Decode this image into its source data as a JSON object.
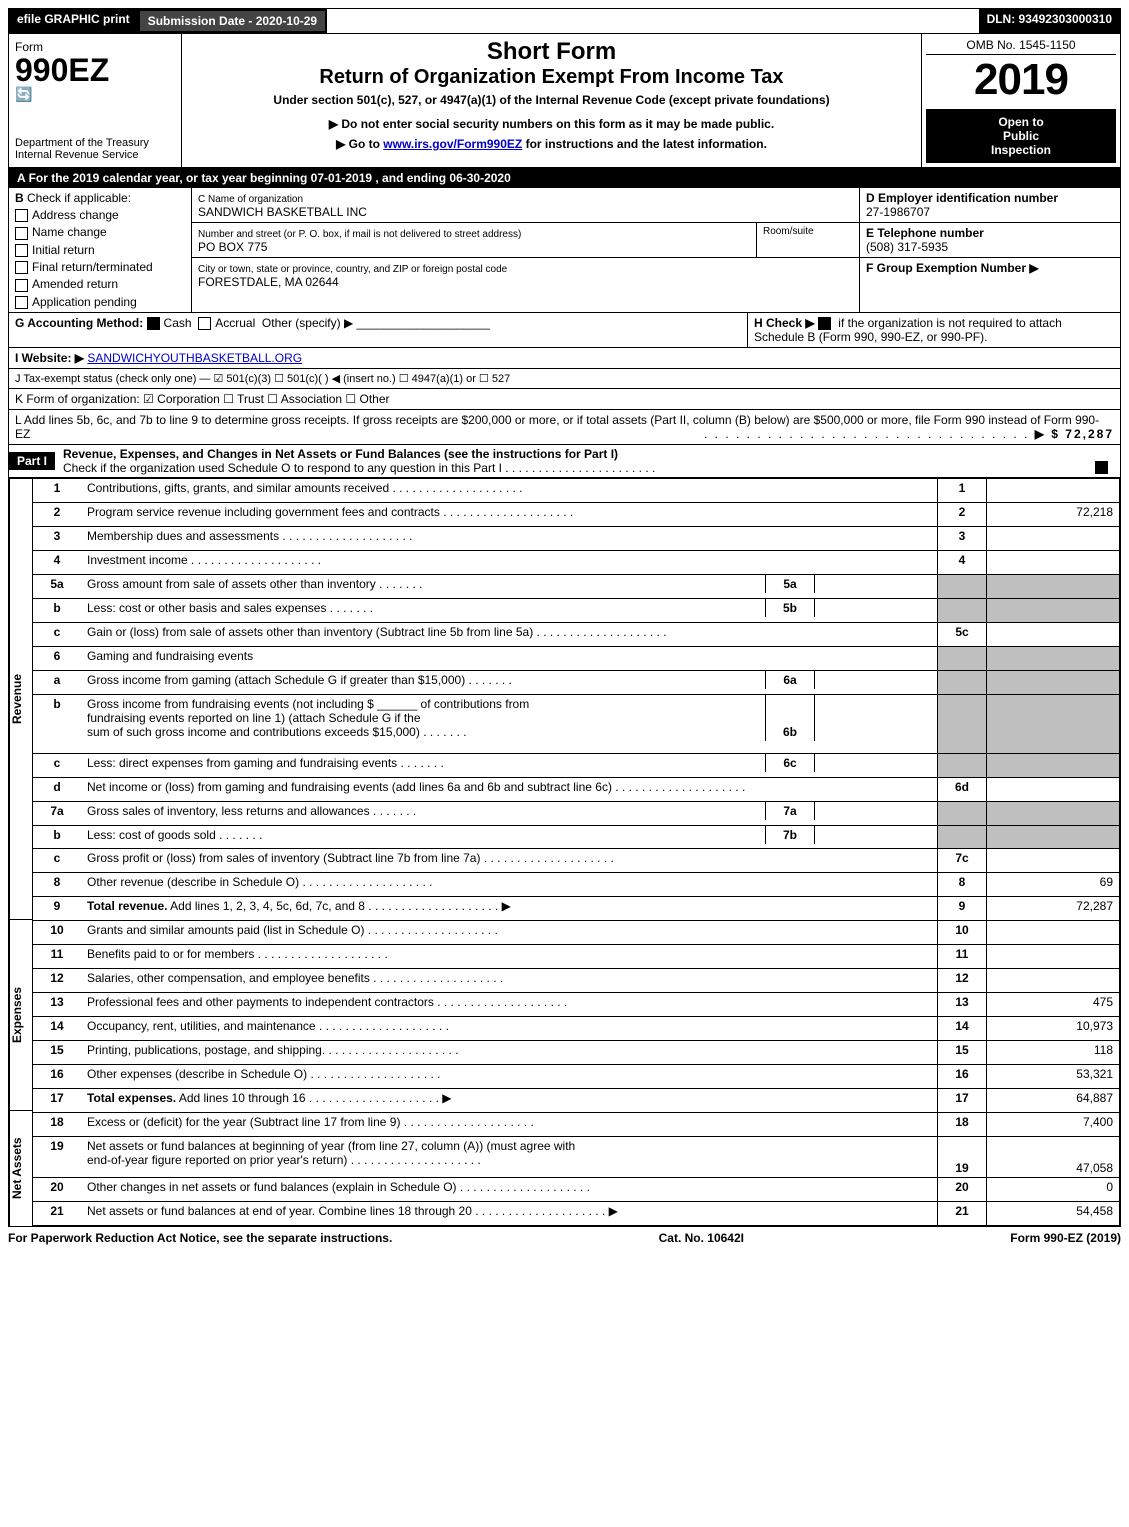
{
  "topbar": {
    "efile": "efile GRAPHIC print",
    "submission_label": "Submission Date - 2020-10-29",
    "dln_label": "DLN: 93492303000310"
  },
  "header": {
    "form_word": "Form",
    "form_num": "990EZ",
    "dept": "Department of the Treasury",
    "irs": "Internal Revenue Service",
    "short_form": "Short Form",
    "title": "Return of Organization Exempt From Income Tax",
    "subtitle": "Under section 501(c), 527, or 4947(a)(1) of the Internal Revenue Code (except private foundations)",
    "note1": "▶ Do not enter social security numbers on this form as it may be made public.",
    "note2": "▶ Go to ",
    "note2_link": "www.irs.gov/Form990EZ",
    "note2_tail": " for instructions and the latest information.",
    "omb": "OMB No. 1545-1150",
    "year": "2019",
    "open1": "Open to",
    "open2": "Public",
    "open3": "Inspection"
  },
  "A": {
    "text": "For the 2019 calendar year, or tax year beginning 07-01-2019 , and ending 06-30-2020"
  },
  "B": {
    "label": "Check if applicable:",
    "opts": [
      "Address change",
      "Name change",
      "Initial return",
      "Final return/terminated",
      "Amended return",
      "Application pending"
    ]
  },
  "C": {
    "name_label": "C Name of organization",
    "name": "SANDWICH BASKETBALL INC",
    "street_label": "Number and street (or P. O. box, if mail is not delivered to street address)",
    "room_label": "Room/suite",
    "street": "PO BOX 775",
    "city_label": "City or town, state or province, country, and ZIP or foreign postal code",
    "city": "FORESTDALE, MA  02644"
  },
  "D": {
    "label": "D Employer identification number",
    "value": "27-1986707"
  },
  "E": {
    "label": "E Telephone number",
    "value": "(508) 317-5935"
  },
  "F": {
    "label": "F Group Exemption Number ▶",
    "value": ""
  },
  "G": {
    "label": "G Accounting Method:",
    "cash": "Cash",
    "accrual": "Accrual",
    "other": "Other (specify) ▶"
  },
  "H": {
    "label": "H  Check ▶",
    "tail": "if the organization is not required to attach Schedule B (Form 990, 990-EZ, or 990-PF)."
  },
  "I": {
    "prefix": "I Website: ▶",
    "value": "SANDWICHYOUTHBASKETBALL.ORG"
  },
  "J": {
    "text": "J Tax-exempt status (check only one) —  ☑ 501(c)(3)  ☐ 501(c)(  ) ◀ (insert no.)  ☐ 4947(a)(1) or  ☐ 527"
  },
  "K": {
    "text": "K Form of organization:   ☑ Corporation   ☐ Trust   ☐ Association   ☐ Other"
  },
  "L": {
    "text": "L Add lines 5b, 6c, and 7b to line 9 to determine gross receipts. If gross receipts are $200,000 or more, or if total assets (Part II, column (B) below) are $500,000 or more, file Form 990 instead of Form 990-EZ",
    "amount": "▶ $ 72,287"
  },
  "part1": {
    "label": "Part I",
    "title": "Revenue, Expenses, and Changes in Net Assets or Fund Balances (see the instructions for Part I)",
    "check_note": "Check if the organization used Schedule O to respond to any question in this Part I",
    "check_dots": ". . . . . . . . . . . . . . . . . . . . . . ."
  },
  "sections": {
    "revenue": "Revenue",
    "expenses": "Expenses",
    "netassets": "Net Assets"
  },
  "lines": {
    "l1": {
      "n": "1",
      "t": "Contributions, gifts, grants, and similar amounts received",
      "col": "1",
      "amt": ""
    },
    "l2": {
      "n": "2",
      "t": "Program service revenue including government fees and contracts",
      "col": "2",
      "amt": "72,218"
    },
    "l3": {
      "n": "3",
      "t": "Membership dues and assessments",
      "col": "3",
      "amt": ""
    },
    "l4": {
      "n": "4",
      "t": "Investment income",
      "col": "4",
      "amt": ""
    },
    "l5a": {
      "n": "5a",
      "t": "Gross amount from sale of assets other than inventory",
      "sub": "5a"
    },
    "l5b": {
      "n": "b",
      "t": "Less: cost or other basis and sales expenses",
      "sub": "5b"
    },
    "l5c": {
      "n": "c",
      "t": "Gain or (loss) from sale of assets other than inventory (Subtract line 5b from line 5a)",
      "col": "5c",
      "amt": ""
    },
    "l6": {
      "n": "6",
      "t": "Gaming and fundraising events"
    },
    "l6a": {
      "n": "a",
      "t": "Gross income from gaming (attach Schedule G if greater than $15,000)",
      "sub": "6a"
    },
    "l6b": {
      "n": "b",
      "t": "Gross income from fundraising events (not including $",
      "mid": "of contributions from",
      "t2": "fundraising events reported on line 1) (attach Schedule G if the",
      "t3": "sum of such gross income and contributions exceeds $15,000)",
      "sub": "6b"
    },
    "l6c": {
      "n": "c",
      "t": "Less: direct expenses from gaming and fundraising events",
      "sub": "6c"
    },
    "l6d": {
      "n": "d",
      "t": "Net income or (loss) from gaming and fundraising events (add lines 6a and 6b and subtract line 6c)",
      "col": "6d",
      "amt": ""
    },
    "l7a": {
      "n": "7a",
      "t": "Gross sales of inventory, less returns and allowances",
      "sub": "7a"
    },
    "l7b": {
      "n": "b",
      "t": "Less: cost of goods sold",
      "sub": "7b"
    },
    "l7c": {
      "n": "c",
      "t": "Gross profit or (loss) from sales of inventory (Subtract line 7b from line 7a)",
      "col": "7c",
      "amt": ""
    },
    "l8": {
      "n": "8",
      "t": "Other revenue (describe in Schedule O)",
      "col": "8",
      "amt": "69"
    },
    "l9": {
      "n": "9",
      "t": "Total revenue. Add lines 1, 2, 3, 4, 5c, 6d, 7c, and 8",
      "col": "9",
      "amt": "72,287",
      "arrow": "▶"
    },
    "l10": {
      "n": "10",
      "t": "Grants and similar amounts paid (list in Schedule O)",
      "col": "10",
      "amt": ""
    },
    "l11": {
      "n": "11",
      "t": "Benefits paid to or for members",
      "col": "11",
      "amt": ""
    },
    "l12": {
      "n": "12",
      "t": "Salaries, other compensation, and employee benefits",
      "col": "12",
      "amt": ""
    },
    "l13": {
      "n": "13",
      "t": "Professional fees and other payments to independent contractors",
      "col": "13",
      "amt": "475"
    },
    "l14": {
      "n": "14",
      "t": "Occupancy, rent, utilities, and maintenance",
      "col": "14",
      "amt": "10,973"
    },
    "l15": {
      "n": "15",
      "t": "Printing, publications, postage, and shipping.",
      "col": "15",
      "amt": "118"
    },
    "l16": {
      "n": "16",
      "t": "Other expenses (describe in Schedule O)",
      "col": "16",
      "amt": "53,321"
    },
    "l17": {
      "n": "17",
      "t": "Total expenses. Add lines 10 through 16",
      "col": "17",
      "amt": "64,887",
      "arrow": "▶"
    },
    "l18": {
      "n": "18",
      "t": "Excess or (deficit) for the year (Subtract line 17 from line 9)",
      "col": "18",
      "amt": "7,400"
    },
    "l19": {
      "n": "19",
      "t": "Net assets or fund balances at beginning of year (from line 27, column (A)) (must agree with",
      "t2": "end-of-year figure reported on prior year's return)",
      "col": "19",
      "amt": "47,058"
    },
    "l20": {
      "n": "20",
      "t": "Other changes in net assets or fund balances (explain in Schedule O)",
      "col": "20",
      "amt": "0"
    },
    "l21": {
      "n": "21",
      "t": "Net assets or fund balances at end of year. Combine lines 18 through 20",
      "col": "21",
      "amt": "54,458",
      "arrow": "▶"
    }
  },
  "footer": {
    "left": "For Paperwork Reduction Act Notice, see the separate instructions.",
    "mid": "Cat. No. 10642I",
    "right": "Form 990-EZ (2019)"
  },
  "colors": {
    "black": "#000000",
    "white": "#ffffff",
    "gray_shade": "#bfbfbf",
    "dark_gray": "#444444",
    "link": "#0000cc"
  }
}
